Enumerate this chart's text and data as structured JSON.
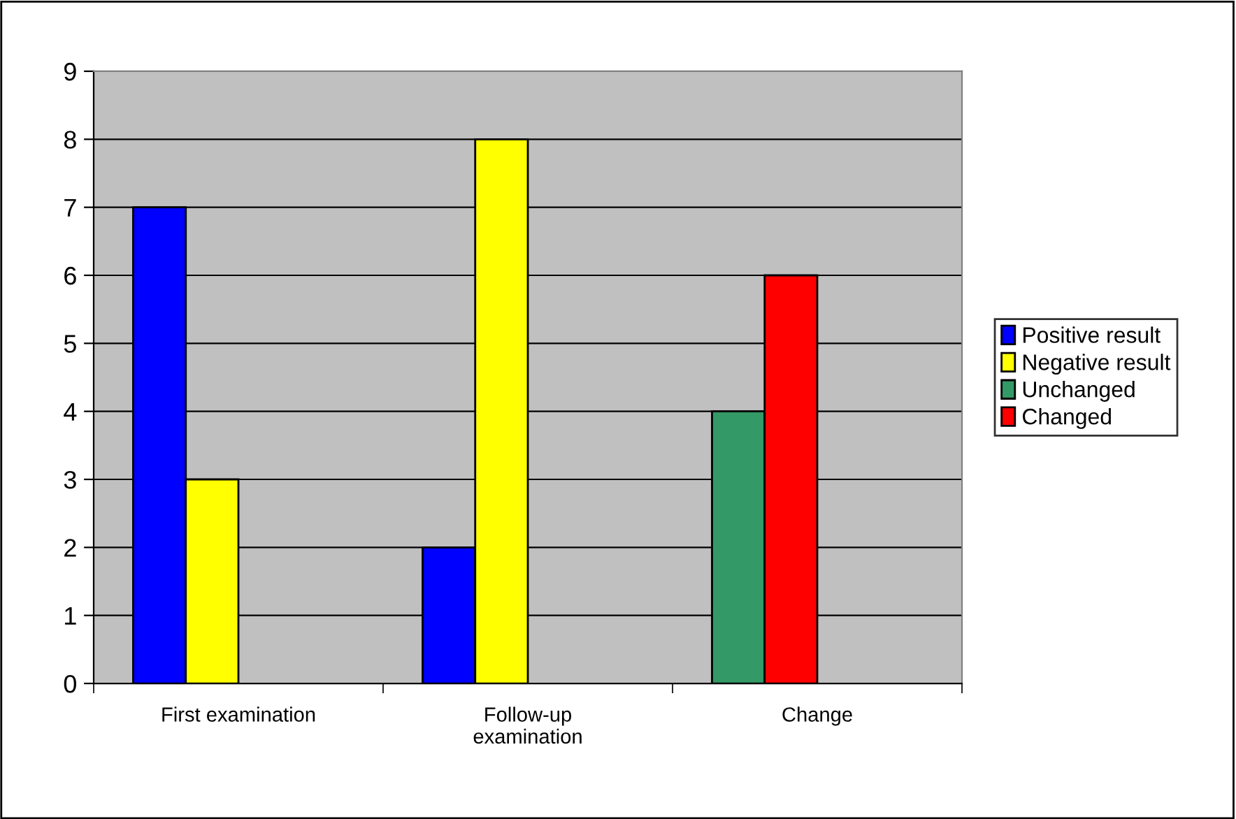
{
  "chart_data": {
    "type": "bar",
    "categories": [
      "First examination",
      "Follow-up examination",
      "Change"
    ],
    "series": [
      {
        "name": "Positive result",
        "color": "#0000ff",
        "values": [
          7,
          2,
          null
        ]
      },
      {
        "name": "Negative result",
        "color": "#ffff00",
        "values": [
          3,
          8,
          null
        ]
      },
      {
        "name": "Unchanged",
        "color": "#339966",
        "values": [
          null,
          null,
          4
        ]
      },
      {
        "name": "Changed",
        "color": "#ff0000",
        "values": [
          null,
          null,
          6
        ]
      }
    ],
    "ylim": [
      0,
      9
    ],
    "yticks": [
      0,
      1,
      2,
      3,
      4,
      5,
      6,
      7,
      8,
      9
    ],
    "grid": "y",
    "legend": "right"
  }
}
